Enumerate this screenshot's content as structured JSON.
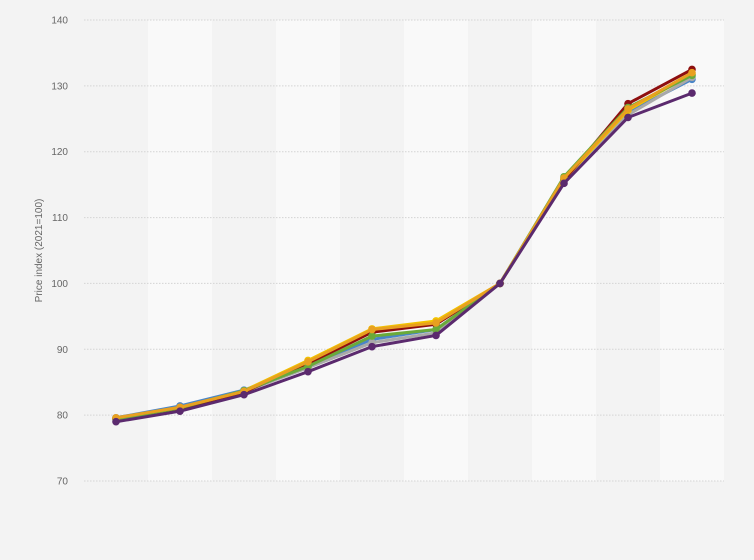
{
  "chart_data": {
    "type": "line",
    "title": "",
    "xlabel": "",
    "ylabel": "Price index (2021=100)",
    "ylim": [
      70,
      140
    ],
    "yticks": [
      70,
      80,
      90,
      100,
      110,
      120,
      130,
      140
    ],
    "x": [
      1,
      2,
      3,
      4,
      5,
      6,
      7,
      8,
      9,
      10
    ],
    "grid": true,
    "legend": "none",
    "series": [
      {
        "color": "#4a85c7",
        "values": [
          79.6,
          81.4,
          83.8,
          87.5,
          91.5,
          93.0,
          100,
          116.0,
          126.0,
          131.0
        ]
      },
      {
        "color": "#a9a9a9",
        "values": [
          79.3,
          81.0,
          83.6,
          87.2,
          91.0,
          92.5,
          100,
          115.9,
          125.6,
          131.3
        ]
      },
      {
        "color": "#f2c200",
        "values": [
          79.5,
          81.1,
          83.7,
          88.3,
          93.1,
          94.3,
          100,
          115.8,
          126.3,
          131.8
        ]
      },
      {
        "color": "#8e0f0f",
        "values": [
          79.5,
          81.0,
          83.5,
          87.8,
          92.6,
          93.8,
          100,
          115.7,
          127.3,
          132.5
        ]
      },
      {
        "color": "#6aaa3a",
        "values": [
          79.4,
          81.1,
          83.7,
          87.4,
          92.0,
          93.0,
          100,
          116.2,
          126.7,
          131.6
        ]
      },
      {
        "color": "#e8a020",
        "values": [
          79.6,
          81.2,
          83.6,
          88.1,
          93.0,
          94.0,
          100,
          116.0,
          126.5,
          132.0
        ]
      },
      {
        "color": "#5b2a6e",
        "values": [
          79.0,
          80.6,
          83.1,
          86.6,
          90.4,
          92.1,
          100,
          115.2,
          125.2,
          128.9
        ]
      }
    ]
  }
}
